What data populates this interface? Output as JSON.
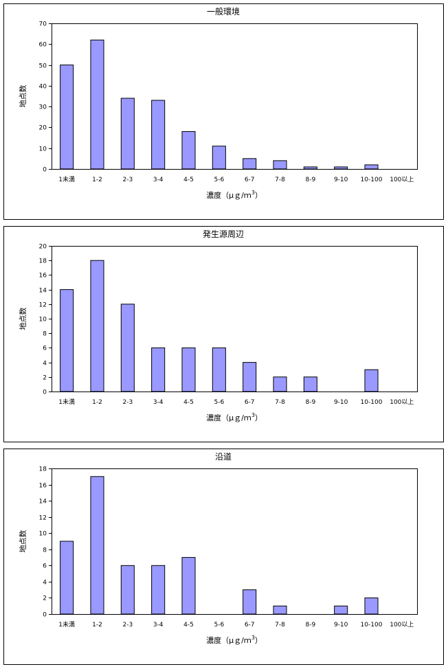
{
  "chart_data": [
    {
      "type": "bar",
      "title": "一般環境",
      "ylabel": "地点数",
      "xlabel": "濃度（μｇ/ｍ",
      "xlabel_sup": "3",
      "xlabel_close": "）",
      "ylim": [
        0,
        70
      ],
      "yticks": [
        "0",
        "10",
        "20",
        "30",
        "40",
        "50",
        "60",
        "70"
      ],
      "categories": [
        "1未満",
        "1-2",
        "2-3",
        "3-4",
        "4-5",
        "5-6",
        "6-7",
        "7-8",
        "8-9",
        "9-10",
        "10-100",
        "100以上"
      ],
      "values": [
        50,
        62,
        34,
        33,
        18,
        11,
        5,
        4,
        1,
        1,
        2,
        0
      ],
      "bar_color": "#9999ff",
      "grid": false,
      "legend": "none"
    },
    {
      "type": "bar",
      "title": "発生源周辺",
      "ylabel": "地点数",
      "xlabel": "濃度（μｇ/ｍ",
      "xlabel_sup": "3",
      "xlabel_close": "）",
      "ylim": [
        0,
        20
      ],
      "yticks": [
        "0",
        "2",
        "4",
        "6",
        "8",
        "10",
        "12",
        "14",
        "16",
        "18",
        "20"
      ],
      "categories": [
        "1未満",
        "1-2",
        "2-3",
        "3-4",
        "4-5",
        "5-6",
        "6-7",
        "7-8",
        "8-9",
        "9-10",
        "10-100",
        "100以上"
      ],
      "values": [
        14,
        18,
        12,
        6,
        6,
        6,
        4,
        2,
        2,
        0,
        3,
        0
      ],
      "bar_color": "#9999ff",
      "grid": false,
      "legend": "none"
    },
    {
      "type": "bar",
      "title": "沿道",
      "ylabel": "地点数",
      "xlabel": "濃度（μｇ/ｍ",
      "xlabel_sup": "3",
      "xlabel_close": "）",
      "ylim": [
        0,
        18
      ],
      "yticks": [
        "0",
        "2",
        "4",
        "6",
        "8",
        "10",
        "12",
        "14",
        "16",
        "18"
      ],
      "categories": [
        "1未満",
        "1-2",
        "2-3",
        "3-4",
        "4-5",
        "5-6",
        "6-7",
        "7-8",
        "8-9",
        "9-10",
        "10-100",
        "100以上"
      ],
      "values": [
        9,
        17,
        6,
        6,
        7,
        0,
        3,
        1,
        0,
        1,
        2,
        0
      ],
      "bar_color": "#9999ff",
      "grid": false,
      "legend": "none"
    }
  ]
}
